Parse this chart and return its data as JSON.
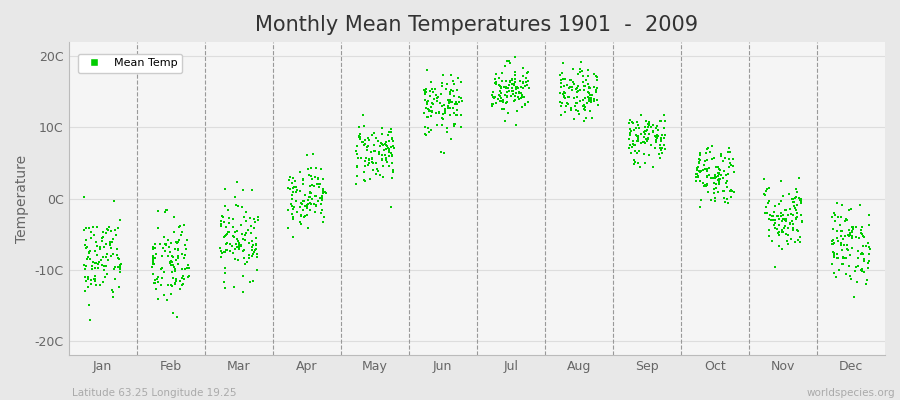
{
  "title": "Monthly Mean Temperatures 1901  -  2009",
  "ylabel": "Temperature",
  "xlabel_labels": [
    "Jan",
    "Feb",
    "Mar",
    "Apr",
    "May",
    "Jun",
    "Jul",
    "Aug",
    "Sep",
    "Oct",
    "Nov",
    "Dec"
  ],
  "ytick_labels": [
    "-20C",
    "-10C",
    "0C",
    "10C",
    "20C"
  ],
  "ytick_values": [
    -20,
    -10,
    0,
    10,
    20
  ],
  "ylim": [
    -22,
    22
  ],
  "xlim": [
    0,
    12
  ],
  "dot_color": "#00CC00",
  "background_color": "#e8e8e8",
  "plot_bg_color": "#f5f5f5",
  "title_fontsize": 15,
  "axis_label_fontsize": 10,
  "tick_fontsize": 9,
  "footer_left": "Latitude 63.25 Longitude 19.25",
  "footer_right": "worldspecies.org",
  "legend_label": "Mean Temp",
  "num_years": 109,
  "monthly_means": [
    -8.5,
    -9.2,
    -5.5,
    0.5,
    6.5,
    12.8,
    15.5,
    14.5,
    8.5,
    3.5,
    -2.5,
    -6.5
  ],
  "monthly_stds": [
    3.2,
    3.5,
    2.8,
    2.2,
    2.2,
    2.2,
    1.8,
    1.8,
    1.8,
    2.2,
    2.5,
    2.8
  ],
  "dot_size": 4,
  "x_spread": 0.28
}
